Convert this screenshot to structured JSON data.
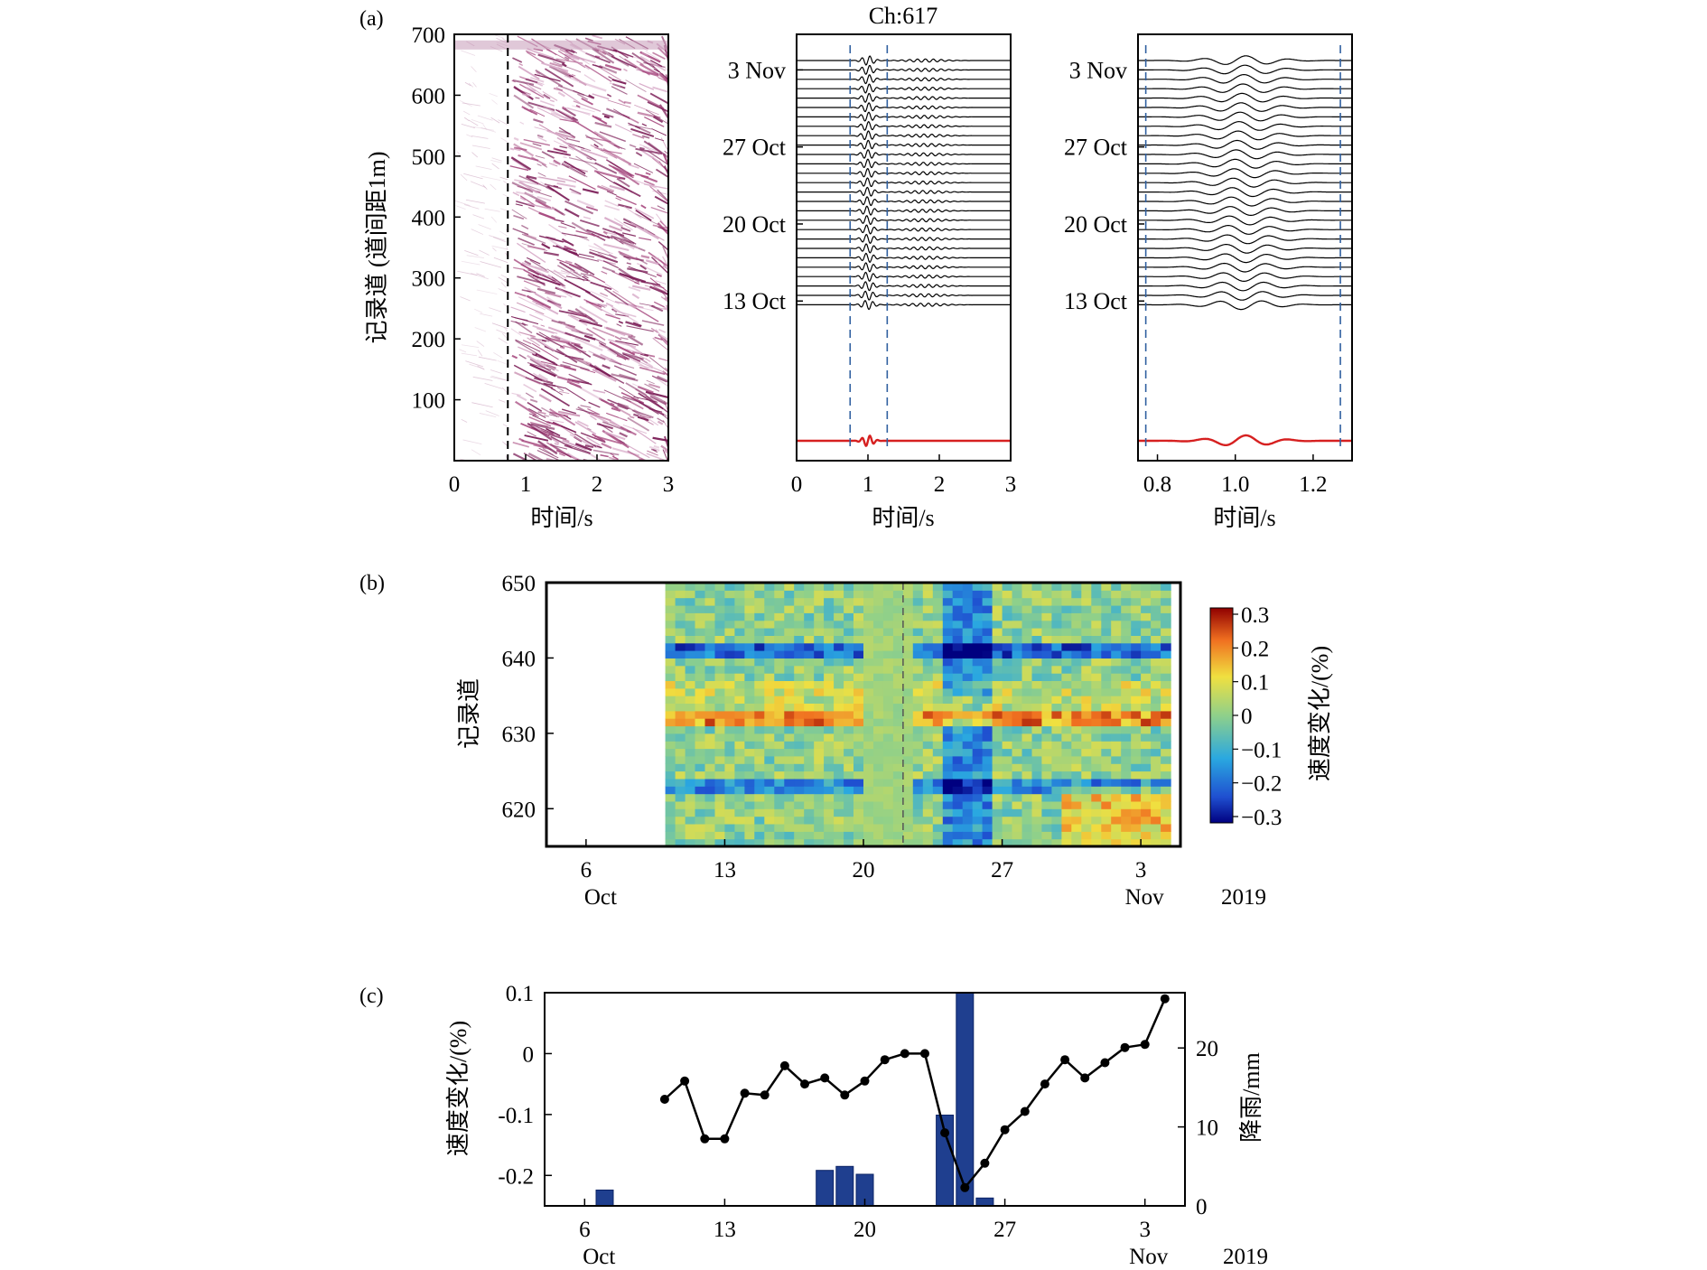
{
  "panel_labels": [
    "(a)",
    "(b)",
    "(c)"
  ],
  "chart_data": [
    {
      "type": "heatmap",
      "panel": "(a)",
      "description_key": "a1",
      "xlabel": "时间/s",
      "ylabel": "记录道 (道间距1m)",
      "xlim": [
        0,
        3
      ],
      "ylim": [
        0,
        700
      ],
      "xticks": [
        0,
        1,
        2,
        3
      ],
      "yticks": [
        100,
        200,
        300,
        400,
        500,
        600,
        700
      ],
      "marker_time": 0.75,
      "colormap": "white-magenta",
      "accent": "#7a1a55"
    },
    {
      "type": "line",
      "panel": "(a)",
      "title": "Ch:617",
      "xlabel": "时间/s",
      "xlim": [
        0,
        3
      ],
      "xticks": [
        0,
        1,
        2,
        3
      ],
      "date_labels": [
        "3 Nov",
        "27 Oct",
        "20 Oct",
        "13 Oct"
      ],
      "trace_count": 27,
      "window": [
        0.75,
        1.27
      ],
      "reference_color": "#d62020",
      "trace_color": "#000000",
      "window_color": "#3060a0"
    },
    {
      "type": "line",
      "panel": "(a)",
      "xlabel": "时间/s",
      "xlim": [
        0.75,
        1.3
      ],
      "xticks": [
        0.8,
        1.0,
        1.2
      ],
      "date_labels": [
        "3 Nov",
        "27 Oct",
        "20 Oct",
        "13 Oct"
      ],
      "trace_count": 27,
      "window": [
        0.77,
        1.27
      ],
      "reference_color": "#d62020",
      "trace_color": "#000000",
      "window_color": "#3060a0"
    },
    {
      "type": "heatmap",
      "panel": "(b)",
      "ylabel": "记录道",
      "colorbar_label": "速度变化/(%)",
      "xlim": [
        "4 Oct 2019",
        "5 Nov 2019"
      ],
      "ylim": [
        615,
        650
      ],
      "data_start": "10 Oct 2019",
      "data_end": "4 Nov 2019",
      "yticks": [
        620,
        630,
        640,
        650
      ],
      "xtick_days": [
        "6",
        "13",
        "20",
        "27",
        "3"
      ],
      "xtick_months": [
        "Oct",
        "Nov"
      ],
      "year_label": "2019",
      "vmin": -0.3,
      "vmax": 0.3,
      "colorbar_ticks": [
        "0.3",
        "0.2",
        "0.1",
        "0",
        "−0.1",
        "−0.2",
        "−0.3"
      ],
      "colormap": "jet",
      "dashed_line_date": "22 Oct 2019",
      "dashed_color": "#555555"
    },
    {
      "type": "line",
      "panel": "(c)",
      "ylabel": "速度变化/(%)",
      "y2label": "降雨/mm",
      "ylim": [
        -0.25,
        0.1
      ],
      "y2lim": [
        0,
        27
      ],
      "yticks": [
        "0.1",
        "0",
        "-0.1",
        "-0.2"
      ],
      "y2ticks": [
        "0",
        "10",
        "20"
      ],
      "xtick_days": [
        "6",
        "13",
        "20",
        "27",
        "3"
      ],
      "xtick_months": [
        "Oct",
        "Nov"
      ],
      "year_label": "2019",
      "velocity_series": {
        "dates": [
          "10 Oct",
          "11 Oct",
          "12 Oct",
          "13 Oct",
          "14 Oct",
          "15 Oct",
          "16 Oct",
          "17 Oct",
          "18 Oct",
          "19 Oct",
          "20 Oct",
          "21 Oct",
          "22 Oct",
          "23 Oct",
          "24 Oct",
          "25 Oct",
          "26 Oct",
          "27 Oct",
          "28 Oct",
          "29 Oct",
          "30 Oct",
          "31 Oct",
          "1 Nov",
          "2 Nov",
          "3 Nov",
          "4 Nov"
        ],
        "values": [
          -0.075,
          -0.045,
          -0.14,
          -0.14,
          -0.065,
          -0.068,
          -0.02,
          -0.05,
          -0.04,
          -0.068,
          -0.045,
          -0.01,
          0.0,
          0.0,
          -0.13,
          -0.22,
          -0.18,
          -0.125,
          -0.095,
          -0.05,
          -0.01,
          -0.04,
          -0.015,
          0.01,
          0.015,
          0.09
        ]
      },
      "rain_series": {
        "dates": [
          "7 Oct",
          "18 Oct",
          "19 Oct",
          "20 Oct",
          "24 Oct",
          "25 Oct",
          "26 Oct"
        ],
        "values": [
          2,
          4.5,
          5,
          4,
          11.5,
          27,
          1
        ]
      },
      "line_color": "#000000",
      "bar_color": "#1f3f8f",
      "right_axis_color": "#1f3f8f"
    }
  ]
}
